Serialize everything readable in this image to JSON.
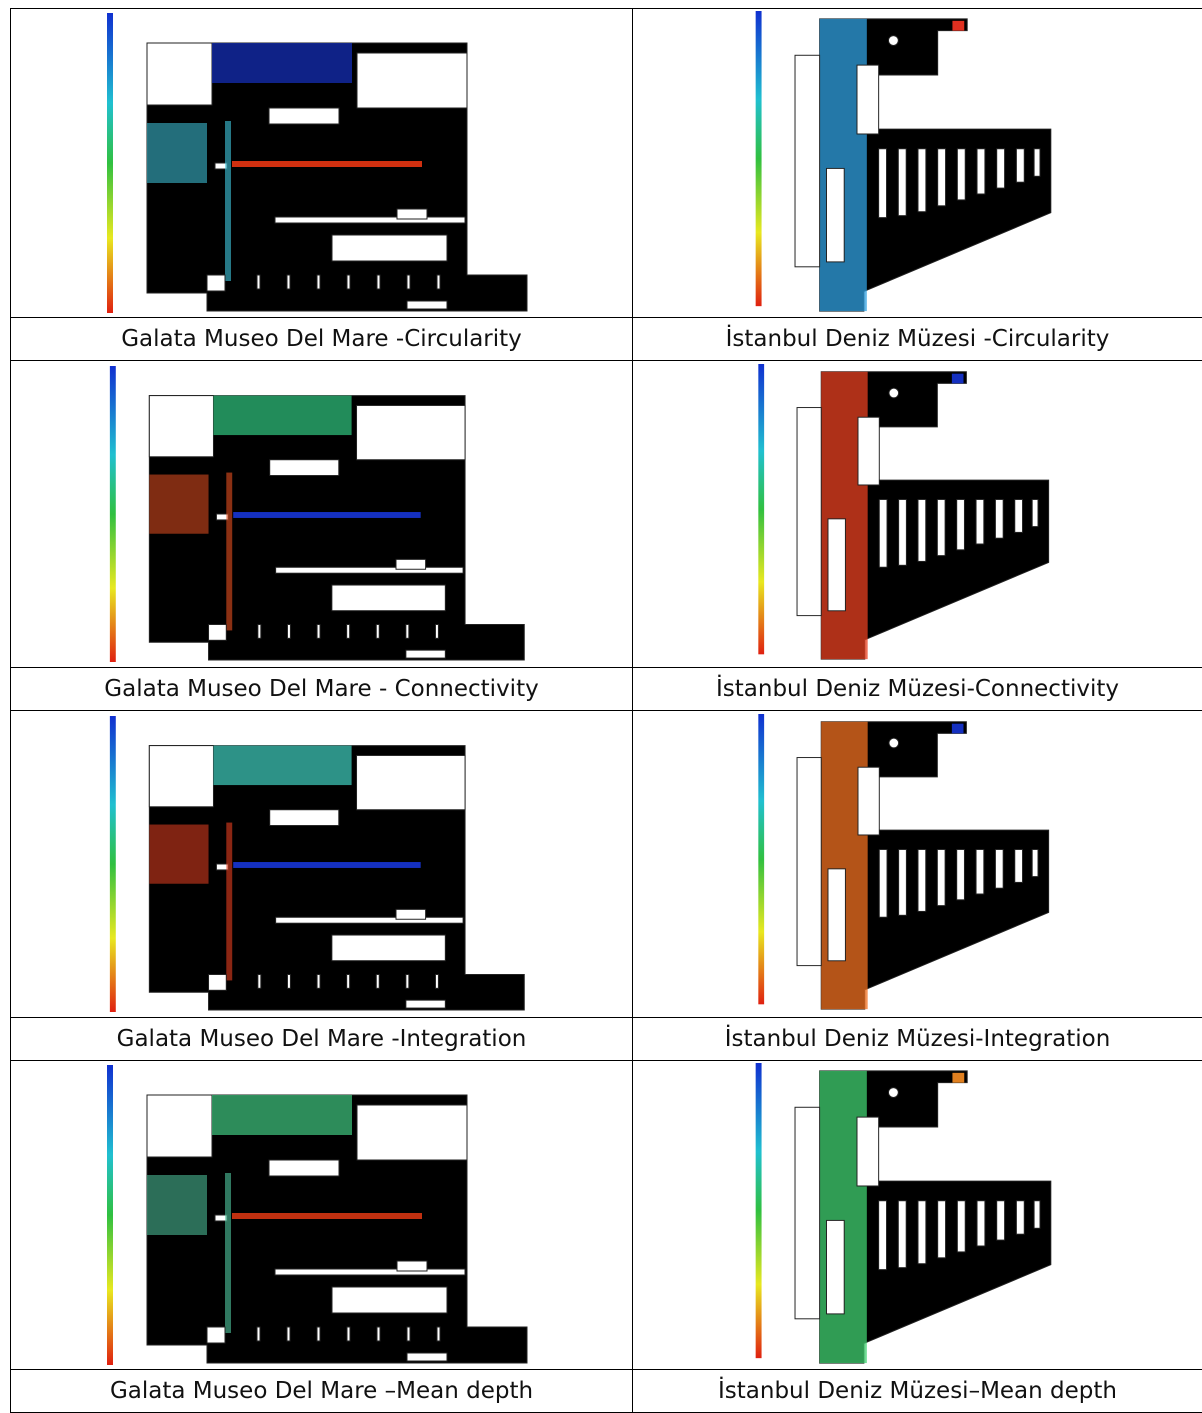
{
  "table": {
    "rows": [
      [
        "Galata Museo Del Mare -Circularity",
        "İstanbul Deniz Müzesi -Circularity"
      ],
      [
        "Galata Museo Del Mare - Connectivity",
        "İstanbul Deniz Müzesi-Connectivity"
      ],
      [
        "Galata Museo Del Mare -Integration",
        "İstanbul Deniz Müzesi-Integration"
      ],
      [
        "Galata Museo Del Mare –Mean depth",
        "İstanbul Deniz Müzesi–Mean depth"
      ]
    ]
  }
}
